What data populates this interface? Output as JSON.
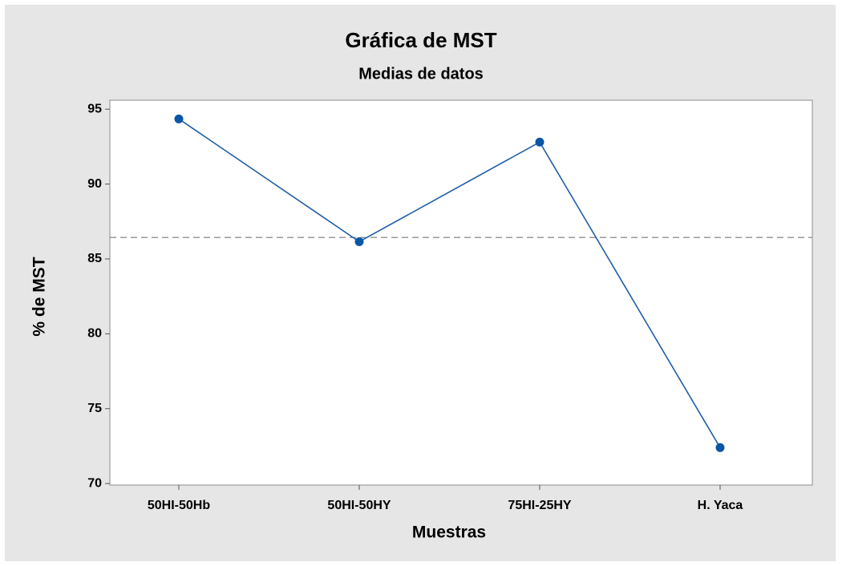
{
  "chart_data": {
    "type": "line",
    "title": "Gráfica de MST",
    "subtitle": "Medias de datos",
    "x_label": "Muestras",
    "y_label": "% de MST",
    "categories": [
      "50HI-50Hb",
      "50HI-50HY",
      "75HI-25HY",
      "H. Yaca"
    ],
    "values": [
      94.35,
      86.15,
      92.8,
      72.4
    ],
    "color": "#1f5fa8",
    "mean_line": 86.43,
    "ylim": [
      69.9,
      95.6
    ],
    "yticks": [
      70,
      75,
      80,
      85,
      90,
      95
    ],
    "grid": false
  }
}
